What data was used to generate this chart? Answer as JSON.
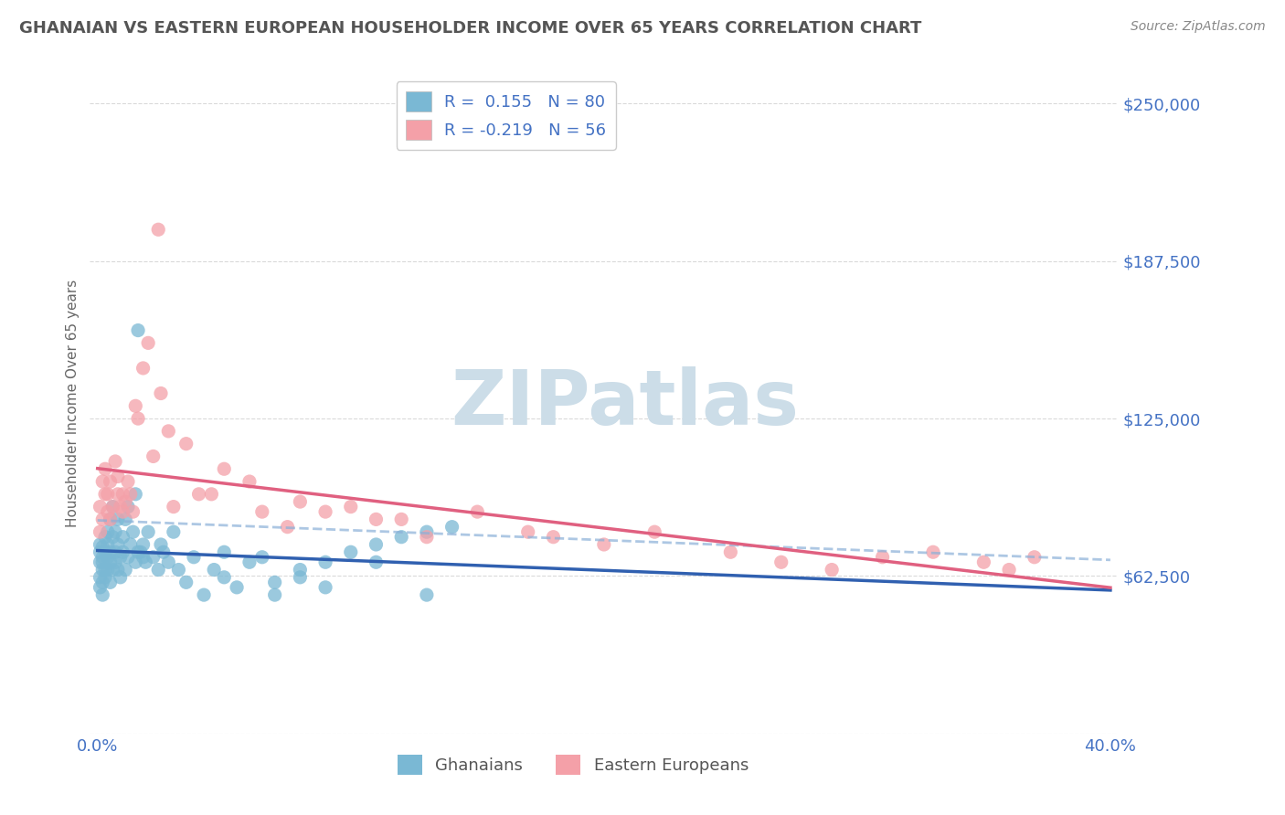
{
  "title": "GHANAIAN VS EASTERN EUROPEAN HOUSEHOLDER INCOME OVER 65 YEARS CORRELATION CHART",
  "source": "Source: ZipAtlas.com",
  "ylabel": "Householder Income Over 65 years",
  "xlim": [
    -0.003,
    0.403
  ],
  "ylim": [
    0,
    262000
  ],
  "yticks": [
    0,
    62500,
    125000,
    187500,
    250000
  ],
  "ytick_labels": [
    "",
    "$62,500",
    "$125,000",
    "$187,500",
    "$250,000"
  ],
  "xticks": [
    0.0,
    0.05,
    0.1,
    0.15,
    0.2,
    0.25,
    0.3,
    0.35,
    0.4
  ],
  "r1": 0.155,
  "n1": 80,
  "r2": -0.219,
  "n2": 56,
  "color_ghanaian": "#7ab8d4",
  "color_eastern": "#f4a0a8",
  "color_line1": "#3060b0",
  "color_line2": "#e06080",
  "color_line1_dashed": "#8ab0d8",
  "axis_tick_color": "#4472c4",
  "watermark_color": "#ccdde8",
  "title_color": "#555555",
  "ylabel_color": "#666666",
  "source_color": "#888888",
  "legend_text_color": "#4472c4",
  "background_color": "#ffffff",
  "ghanaian_x": [
    0.001,
    0.001,
    0.001,
    0.001,
    0.001,
    0.002,
    0.002,
    0.002,
    0.002,
    0.002,
    0.002,
    0.003,
    0.003,
    0.003,
    0.003,
    0.004,
    0.004,
    0.004,
    0.004,
    0.005,
    0.005,
    0.005,
    0.005,
    0.006,
    0.006,
    0.006,
    0.007,
    0.007,
    0.007,
    0.008,
    0.008,
    0.008,
    0.009,
    0.009,
    0.01,
    0.01,
    0.011,
    0.011,
    0.012,
    0.012,
    0.013,
    0.014,
    0.015,
    0.016,
    0.017,
    0.018,
    0.019,
    0.02,
    0.022,
    0.024,
    0.026,
    0.028,
    0.03,
    0.032,
    0.035,
    0.038,
    0.042,
    0.046,
    0.05,
    0.055,
    0.06,
    0.065,
    0.07,
    0.08,
    0.09,
    0.1,
    0.11,
    0.12,
    0.13,
    0.14,
    0.015,
    0.025,
    0.05,
    0.07,
    0.08,
    0.09,
    0.11,
    0.13,
    0.016,
    0.018
  ],
  "ghanaian_y": [
    62000,
    68000,
    72000,
    58000,
    75000,
    65000,
    70000,
    60000,
    68000,
    74000,
    55000,
    72000,
    65000,
    78000,
    62000,
    80000,
    70000,
    65000,
    75000,
    85000,
    68000,
    72000,
    60000,
    78000,
    65000,
    90000,
    72000,
    68000,
    80000,
    75000,
    65000,
    85000,
    70000,
    62000,
    78000,
    72000,
    85000,
    65000,
    90000,
    70000,
    75000,
    80000,
    68000,
    160000,
    72000,
    75000,
    68000,
    80000,
    70000,
    65000,
    72000,
    68000,
    80000,
    65000,
    60000,
    70000,
    55000,
    65000,
    62000,
    58000,
    68000,
    70000,
    55000,
    62000,
    68000,
    72000,
    75000,
    78000,
    80000,
    82000,
    95000,
    75000,
    72000,
    60000,
    65000,
    58000,
    68000,
    55000,
    72000,
    70000
  ],
  "eastern_x": [
    0.001,
    0.001,
    0.002,
    0.002,
    0.003,
    0.003,
    0.004,
    0.004,
    0.005,
    0.005,
    0.006,
    0.007,
    0.008,
    0.008,
    0.009,
    0.01,
    0.01,
    0.011,
    0.012,
    0.013,
    0.014,
    0.015,
    0.016,
    0.018,
    0.02,
    0.022,
    0.025,
    0.028,
    0.035,
    0.04,
    0.05,
    0.06,
    0.08,
    0.09,
    0.1,
    0.12,
    0.13,
    0.15,
    0.17,
    0.18,
    0.2,
    0.22,
    0.25,
    0.27,
    0.29,
    0.31,
    0.33,
    0.35,
    0.36,
    0.37,
    0.024,
    0.03,
    0.045,
    0.065,
    0.075,
    0.11
  ],
  "eastern_y": [
    90000,
    80000,
    100000,
    85000,
    95000,
    105000,
    88000,
    95000,
    100000,
    85000,
    90000,
    108000,
    95000,
    102000,
    90000,
    95000,
    88000,
    92000,
    100000,
    95000,
    88000,
    130000,
    125000,
    145000,
    155000,
    110000,
    135000,
    120000,
    115000,
    95000,
    105000,
    100000,
    92000,
    88000,
    90000,
    85000,
    78000,
    88000,
    80000,
    78000,
    75000,
    80000,
    72000,
    68000,
    65000,
    70000,
    72000,
    68000,
    65000,
    70000,
    200000,
    90000,
    95000,
    88000,
    82000,
    85000
  ]
}
